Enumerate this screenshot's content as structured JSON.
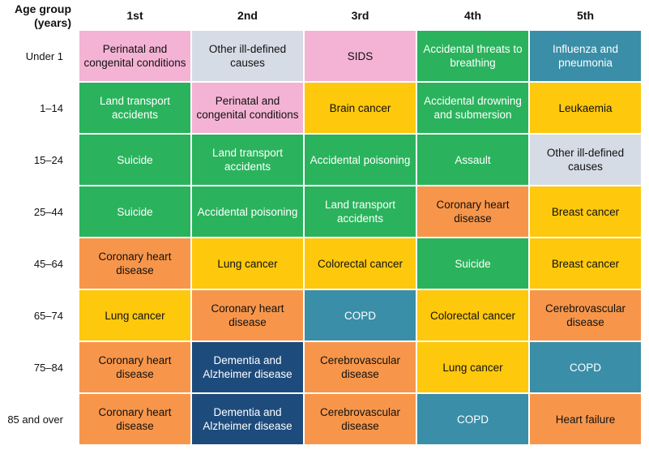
{
  "header": {
    "corner_label": "Age group (years)",
    "columns": [
      "1st",
      "2nd",
      "3rd",
      "4th",
      "5th"
    ]
  },
  "categories": {
    "perinatal": {
      "color": "#f4b3d4",
      "text": "dark"
    },
    "illdefined": {
      "color": "#d6dce5",
      "text": "dark"
    },
    "injury": {
      "color": "#2ab35c",
      "text": "light"
    },
    "respiratory": {
      "color": "#3a8ea7",
      "text": "light"
    },
    "cancer": {
      "color": "#fec80c",
      "text": "dark"
    },
    "cardio": {
      "color": "#f7964a",
      "text": "dark"
    },
    "dementia": {
      "color": "#1d4b7c",
      "text": "light"
    }
  },
  "rows": [
    {
      "age": "Under 1",
      "cells": [
        {
          "label": "Perinatal and congenital conditions",
          "cat": "perinatal"
        },
        {
          "label": "Other ill-defined causes",
          "cat": "illdefined"
        },
        {
          "label": "SIDS",
          "cat": "perinatal"
        },
        {
          "label": "Accidental threats to breathing",
          "cat": "injury"
        },
        {
          "label": "Influenza and pneumonia",
          "cat": "respiratory"
        }
      ]
    },
    {
      "age": "1–14",
      "cells": [
        {
          "label": "Land transport accidents",
          "cat": "injury"
        },
        {
          "label": "Perinatal and congenital conditions",
          "cat": "perinatal"
        },
        {
          "label": "Brain cancer",
          "cat": "cancer"
        },
        {
          "label": "Accidental drowning and submersion",
          "cat": "injury"
        },
        {
          "label": "Leukaemia",
          "cat": "cancer"
        }
      ]
    },
    {
      "age": "15–24",
      "cells": [
        {
          "label": "Suicide",
          "cat": "injury"
        },
        {
          "label": "Land transport accidents",
          "cat": "injury"
        },
        {
          "label": "Accidental poisoning",
          "cat": "injury"
        },
        {
          "label": "Assault",
          "cat": "injury"
        },
        {
          "label": "Other ill-defined causes",
          "cat": "illdefined"
        }
      ]
    },
    {
      "age": "25–44",
      "cells": [
        {
          "label": "Suicide",
          "cat": "injury"
        },
        {
          "label": "Accidental poisoning",
          "cat": "injury"
        },
        {
          "label": "Land transport accidents",
          "cat": "injury"
        },
        {
          "label": "Coronary heart disease",
          "cat": "cardio"
        },
        {
          "label": "Breast cancer",
          "cat": "cancer"
        }
      ]
    },
    {
      "age": "45–64",
      "cells": [
        {
          "label": "Coronary heart disease",
          "cat": "cardio"
        },
        {
          "label": "Lung cancer",
          "cat": "cancer"
        },
        {
          "label": "Colorectal cancer",
          "cat": "cancer"
        },
        {
          "label": "Suicide",
          "cat": "injury"
        },
        {
          "label": "Breast cancer",
          "cat": "cancer"
        }
      ]
    },
    {
      "age": "65–74",
      "cells": [
        {
          "label": "Lung cancer",
          "cat": "cancer"
        },
        {
          "label": "Coronary heart disease",
          "cat": "cardio"
        },
        {
          "label": "COPD",
          "cat": "respiratory"
        },
        {
          "label": "Colorectal cancer",
          "cat": "cancer"
        },
        {
          "label": "Cerebrovascular disease",
          "cat": "cardio"
        }
      ]
    },
    {
      "age": "75–84",
      "cells": [
        {
          "label": "Coronary heart disease",
          "cat": "cardio"
        },
        {
          "label": "Dementia and Alzheimer disease",
          "cat": "dementia"
        },
        {
          "label": "Cerebrovascular disease",
          "cat": "cardio"
        },
        {
          "label": "Lung cancer",
          "cat": "cancer"
        },
        {
          "label": "COPD",
          "cat": "respiratory"
        }
      ]
    },
    {
      "age": "85 and over",
      "cells": [
        {
          "label": "Coronary heart disease",
          "cat": "cardio"
        },
        {
          "label": "Dementia and Alzheimer disease",
          "cat": "dementia"
        },
        {
          "label": "Cerebrovascular disease",
          "cat": "cardio"
        },
        {
          "label": "COPD",
          "cat": "respiratory"
        },
        {
          "label": "Heart failure",
          "cat": "cardio"
        }
      ]
    }
  ]
}
